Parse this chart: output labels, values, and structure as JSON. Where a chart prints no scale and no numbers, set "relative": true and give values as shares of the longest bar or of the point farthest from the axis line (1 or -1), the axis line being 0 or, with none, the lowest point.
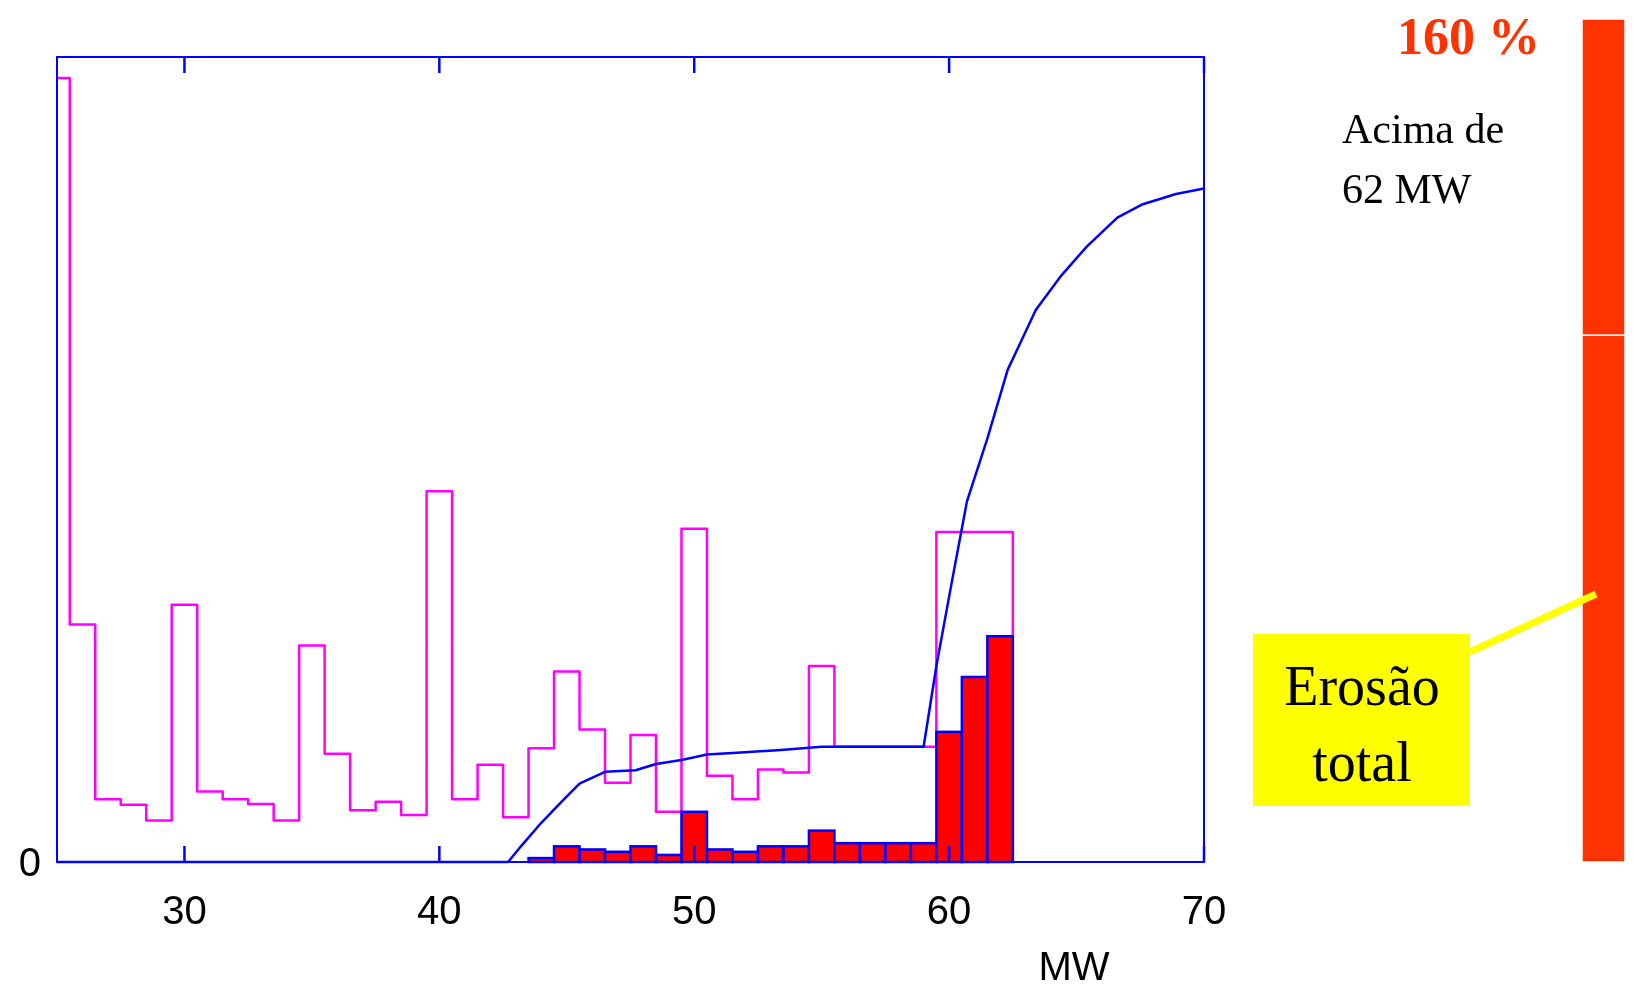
{
  "chart_data": [
    {
      "type": "bar",
      "relative": true,
      "xlabel": "MW",
      "xlim": [
        25,
        70
      ],
      "xticks": [
        30,
        40,
        50,
        60,
        70
      ],
      "annotations": [
        "0"
      ],
      "series": [
        {
          "type": "step",
          "color": "#ff00ff",
          "x": [
            25,
            25.5,
            26.5,
            27.5,
            28.5,
            29.5,
            30.5,
            31.5,
            32.5,
            33.5,
            34.5,
            35.5,
            36.5,
            37.5,
            38.5,
            39.5,
            40.5,
            41.5,
            42.5,
            43.5,
            44.5,
            45.5,
            46.5,
            47.5,
            48.5,
            49.5,
            50.5,
            51.5,
            52.5,
            53.5,
            54.5,
            55.5,
            59.5,
            62.5
          ],
          "values": [
            1,
            0.303,
            0.08,
            0.073,
            0.053,
            0.328,
            0.09,
            0.08,
            0.074,
            0.053,
            0.276,
            0.138,
            0.066,
            0.077,
            0.06,
            0.473,
            0.08,
            0.124,
            0.057,
            0.145,
            0.243,
            0.169,
            0.101,
            0.162,
            0.064,
            0.425,
            0.11,
            0.08,
            0.118,
            0.114,
            0.25,
            0.147,
            0.421,
            0
          ]
        },
        {
          "type": "bar",
          "color": "#ff0000",
          "x": [
            44,
            45,
            46,
            47,
            48,
            49,
            50,
            51,
            52,
            53,
            54,
            55,
            56,
            57,
            58,
            59,
            60,
            61,
            62
          ],
          "values": [
            0.005,
            0.02,
            0.016,
            0.013,
            0.02,
            0.009,
            0.064,
            0.016,
            0.013,
            0.02,
            0.02,
            0.04,
            0.024,
            0.024,
            0.024,
            0.024,
            0.166,
            0.236,
            0.288
          ]
        },
        {
          "type": "line",
          "color": "#0000ff",
          "x": [
            25,
            42.7,
            43.2,
            44,
            44.8,
            45.5,
            46.5,
            47.7,
            48.5,
            49.5,
            50.5,
            52,
            53.4,
            55,
            57,
            59,
            59.5,
            60.1,
            60.7,
            61.5,
            62.3,
            63.4,
            64.4,
            65.4,
            66.6,
            67.6,
            68.9,
            70
          ],
          "values": [
            0,
            0,
            0.02,
            0.05,
            0.077,
            0.1,
            0.115,
            0.117,
            0.125,
            0.13,
            0.137,
            0.14,
            0.143,
            0.147,
            0.147,
            0.147,
            0.25,
            0.356,
            0.46,
            0.54,
            0.628,
            0.704,
            0.748,
            0.785,
            0.822,
            0.839,
            0.852,
            0.859
          ]
        }
      ]
    },
    {
      "type": "bar",
      "relative": true,
      "stacked": true,
      "categories": [
        null
      ],
      "title": "160 %",
      "annotations": [
        "Acima de\n62 MW",
        "Erosão\ntotal"
      ],
      "series": [
        {
          "color": "#ff3300",
          "values": [
            0.625
          ]
        },
        {
          "color": "#ff3300",
          "values": [
            0.375
          ]
        }
      ]
    }
  ]
}
